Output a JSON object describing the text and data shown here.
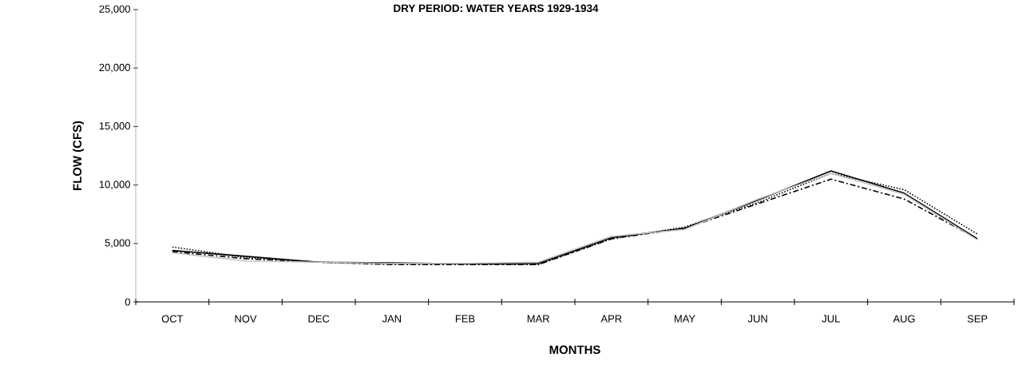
{
  "chart_data": {
    "type": "line",
    "title": "DRY PERIOD: WATER YEARS 1929-1934",
    "xlabel": "MONTHS",
    "ylabel": "FLOW (CFS)",
    "categories": [
      "OCT",
      "NOV",
      "DEC",
      "JAN",
      "FEB",
      "MAR",
      "APR",
      "MAY",
      "JUN",
      "JUL",
      "AUG",
      "SEP"
    ],
    "series": [
      {
        "color": "#000000",
        "line_style": "solid",
        "values": [
          4400,
          3900,
          3400,
          3350,
          3250,
          3300,
          5500,
          6300,
          8700,
          11200,
          9300,
          5400
        ]
      },
      {
        "color": "#000000",
        "line_style": "dotted",
        "values": [
          4700,
          3800,
          3400,
          3250,
          3250,
          3200,
          5400,
          6400,
          8500,
          11000,
          9600,
          5800
        ]
      },
      {
        "color": "#000000",
        "line_style": "dashdot",
        "values": [
          4300,
          3700,
          3400,
          3200,
          3200,
          3200,
          5400,
          6300,
          8400,
          10500,
          8800,
          5400
        ]
      },
      {
        "color": "#c0c0c0",
        "line_style": "solid",
        "values": [
          4200,
          3500,
          3400,
          3300,
          3300,
          3400,
          5600,
          6200,
          8800,
          11000,
          9200,
          5300
        ]
      }
    ],
    "ylim": [
      0,
      25000
    ],
    "yticks": [
      0,
      {
        "value": 5000,
        "label": "5,000"
      },
      {
        "value": 10000,
        "label": "10,000"
      },
      {
        "value": 15000,
        "label": "15,000"
      },
      {
        "value": 20000,
        "label": "20,000"
      },
      {
        "value": 25000,
        "label": "25,000"
      }
    ],
    "grid": false,
    "marker": "none"
  }
}
